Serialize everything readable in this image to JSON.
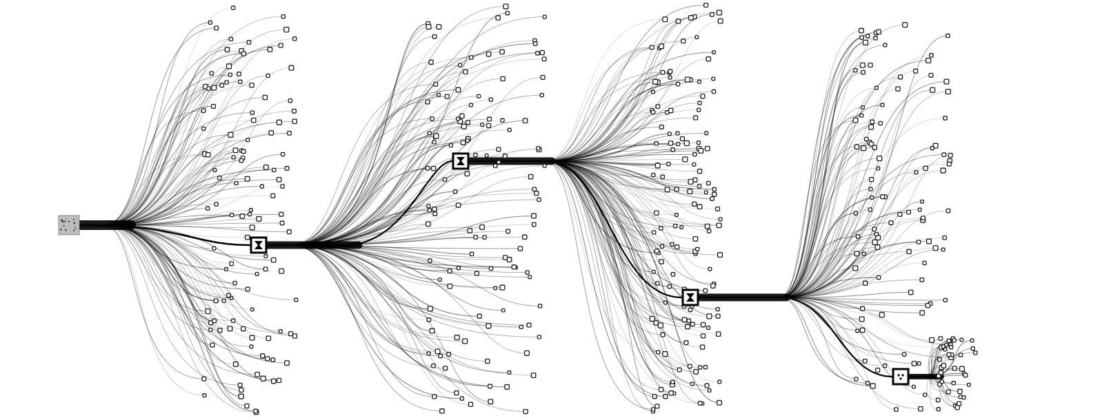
{
  "diagram": {
    "type": "branching-tree-visualization",
    "root": {
      "name": "root-group"
    },
    "hubs": [
      {
        "name": "hub-1",
        "glyph": "hourglass"
      },
      {
        "name": "hub-2",
        "glyph": "hourglass"
      },
      {
        "name": "hub-3",
        "glyph": "hourglass"
      },
      {
        "name": "hub-4",
        "glyph": "dots"
      }
    ],
    "stage_branch_counts": [
      120,
      130,
      150,
      110,
      40
    ],
    "colors": {
      "background": "#ffffff",
      "curve": "#000000",
      "trunk": "#000000",
      "node_stroke": "#1a1a1a",
      "root_fill": "#bdbdbd"
    }
  }
}
